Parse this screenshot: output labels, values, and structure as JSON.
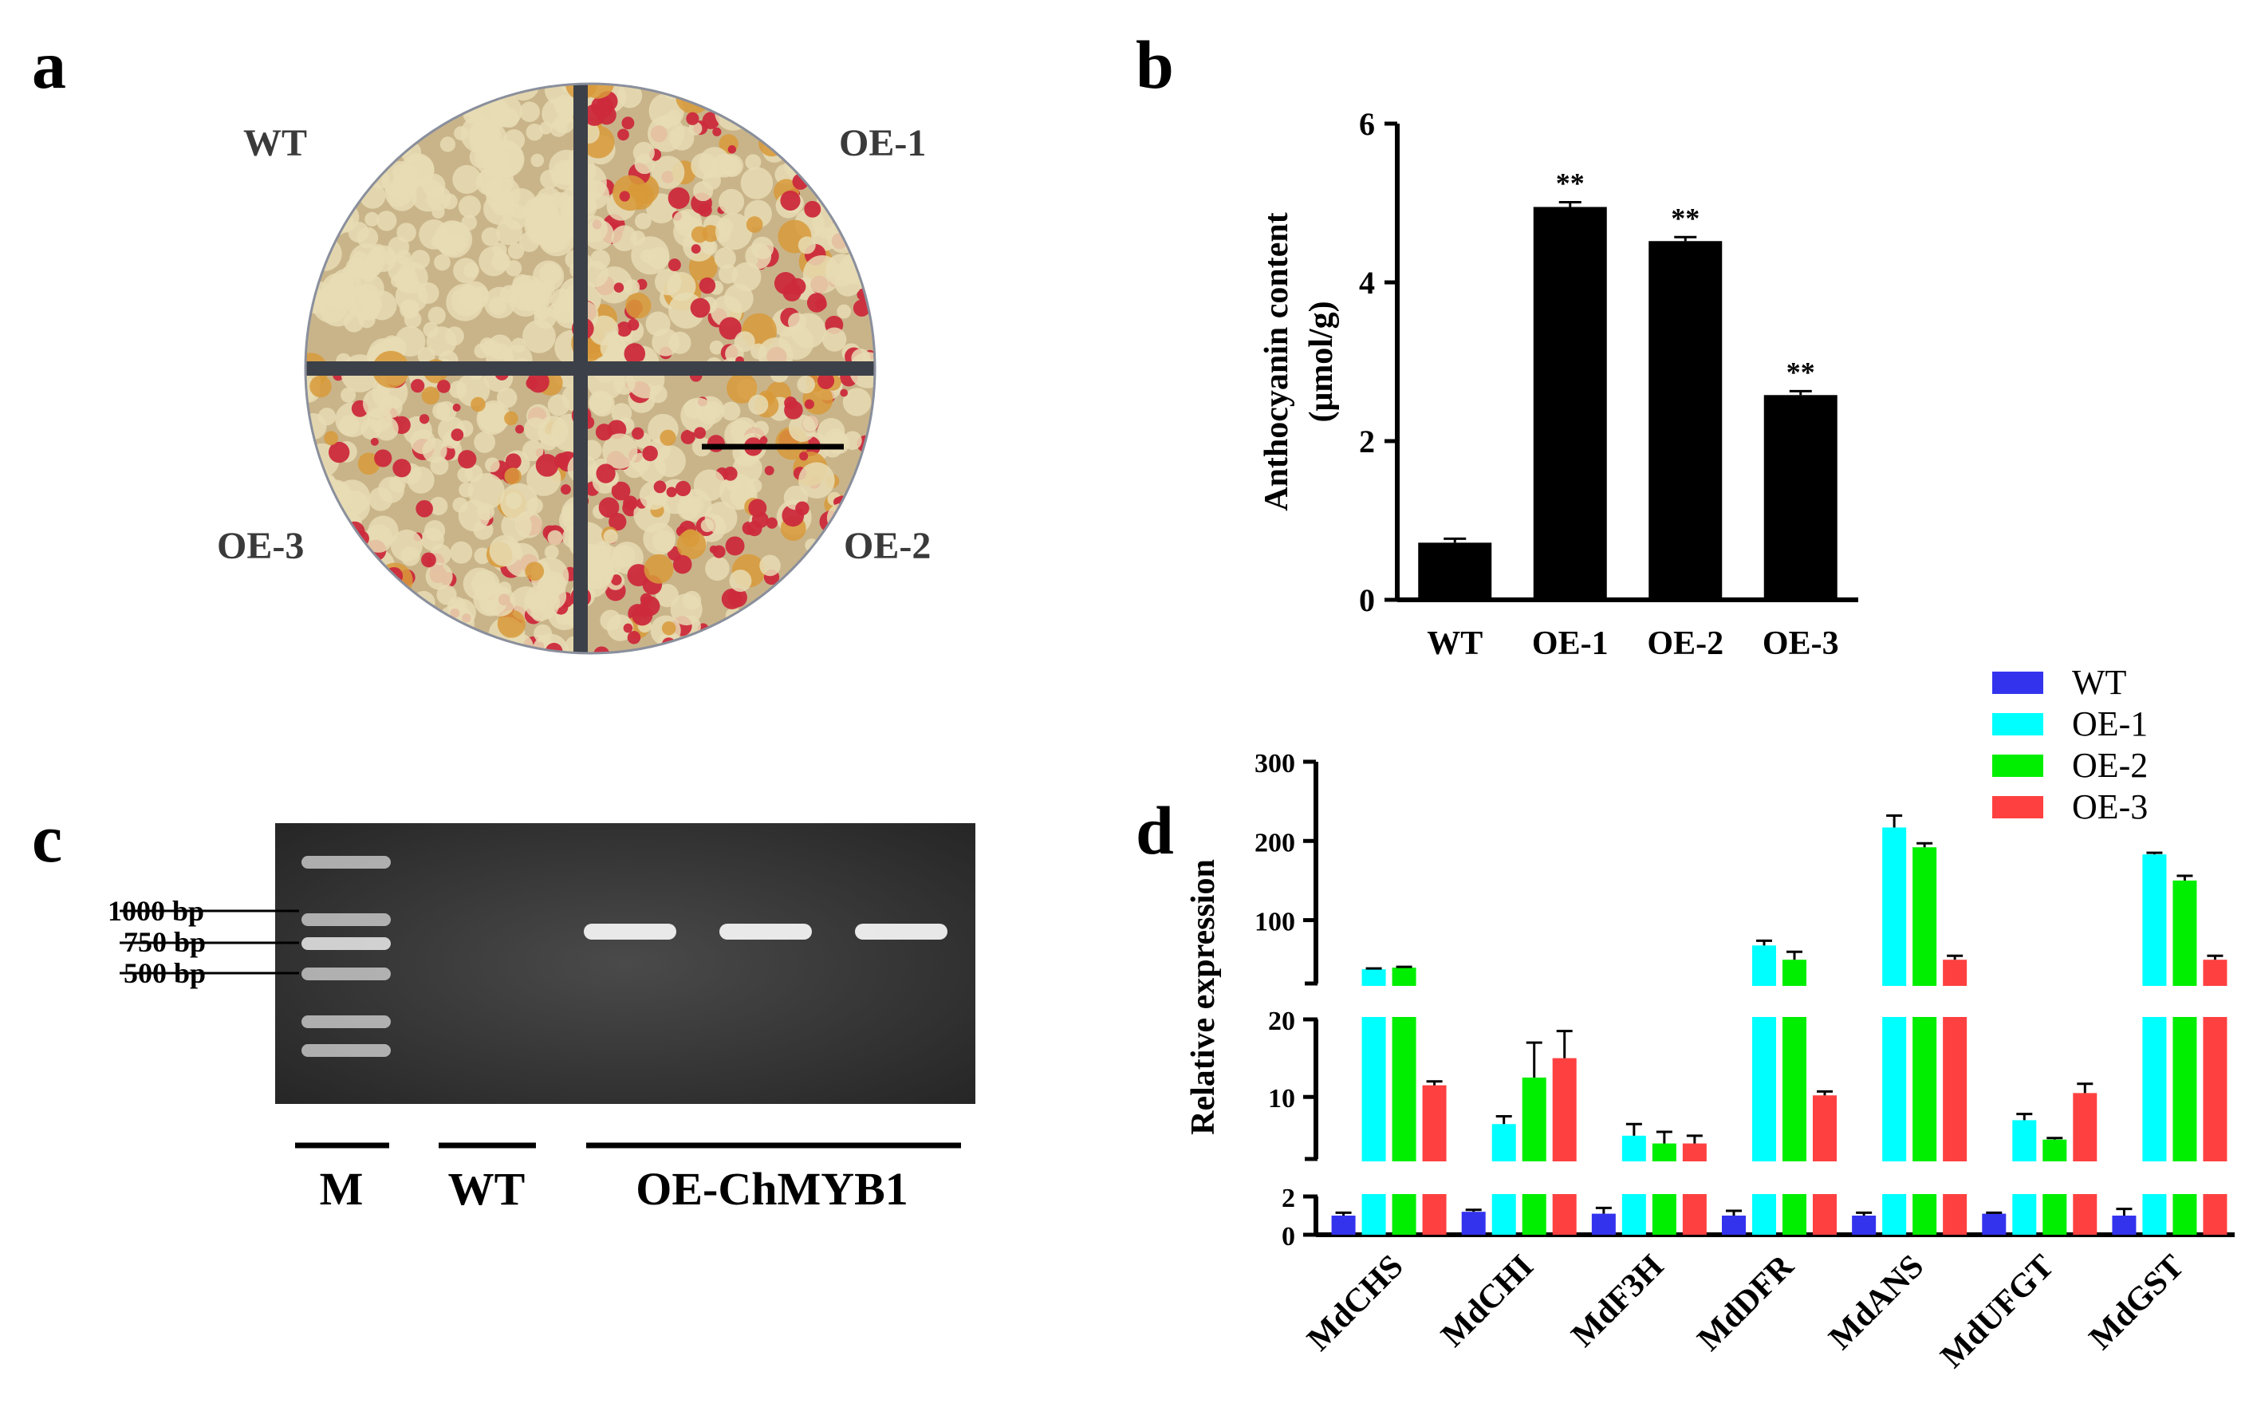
{
  "panels": {
    "a": "a",
    "b": "b",
    "c": "c",
    "d": "d"
  },
  "photo": {
    "quadrants": [
      "WT",
      "OE-1",
      "OE-3",
      "OE-2"
    ],
    "colors": {
      "callus_light": "#e8dcb4",
      "callus_shadow": "#c9b48a",
      "anthocyanin_red": "#cc2a3c",
      "divider": "#3c4048",
      "background_blue": "#9ea9c4"
    }
  },
  "chart_data": [
    {
      "panel": "b",
      "type": "bar",
      "title": "",
      "ylabel_line1": "Anthocyanin content",
      "ylabel_line2": "(μmol/g)",
      "xlabel": "",
      "categories": [
        "WT",
        "OE-1",
        "OE-2",
        "OE-3"
      ],
      "values": [
        0.72,
        4.95,
        4.52,
        2.58
      ],
      "errors": [
        0.05,
        0.06,
        0.05,
        0.05
      ],
      "significance": [
        "",
        "**",
        "**",
        "**"
      ],
      "ylim": [
        0,
        6
      ],
      "yticks": [
        0,
        2,
        4,
        6
      ],
      "bar_color": "#000000"
    },
    {
      "panel": "d",
      "type": "bar",
      "title": "",
      "ylabel": "Relative expression",
      "xlabel": "",
      "broken_axis": {
        "segments": [
          {
            "range": [
              0,
              2
            ],
            "ticks": [
              0,
              2
            ]
          },
          {
            "range": [
              2,
              20
            ],
            "ticks": [
              10,
              20
            ]
          },
          {
            "range": [
              20,
              300
            ],
            "ticks": [
              100,
              200,
              300
            ]
          }
        ]
      },
      "categories": [
        "MdCHS",
        "MdCHI",
        "MdF3H",
        "MdDFR",
        "MdANS",
        "MdUFGT",
        "MdGST"
      ],
      "series": [
        {
          "name": "WT",
          "color": "#3333ee",
          "values": [
            1.0,
            1.2,
            1.1,
            1.0,
            1.0,
            1.1,
            1.0
          ],
          "errors": [
            0.15,
            0.1,
            0.3,
            0.25,
            0.15,
            0.05,
            0.35
          ]
        },
        {
          "name": "OE-1",
          "color": "#00ffff",
          "values": [
            38,
            6.5,
            5.0,
            68,
            217,
            7.0,
            183
          ],
          "errors": [
            1,
            1.0,
            1.5,
            6,
            15,
            0.8,
            2
          ]
        },
        {
          "name": "OE-2",
          "color": "#00ee00",
          "values": [
            40,
            12.5,
            4.0,
            50,
            192,
            4.5,
            150
          ],
          "errors": [
            1,
            4.5,
            1.5,
            10,
            5,
            0.2,
            6
          ]
        },
        {
          "name": "OE-3",
          "color": "#ff4040",
          "values": [
            11.5,
            15,
            4.0,
            10.2,
            50,
            10.5,
            50
          ],
          "errors": [
            0.5,
            3.5,
            1.0,
            0.5,
            5,
            1.2,
            5
          ]
        }
      ]
    }
  ],
  "gel": {
    "size_markers": [
      "1000 bp",
      "750 bp",
      "500 bp"
    ],
    "lanes": [
      "M",
      "WT",
      "OE-ChMYB1"
    ]
  }
}
